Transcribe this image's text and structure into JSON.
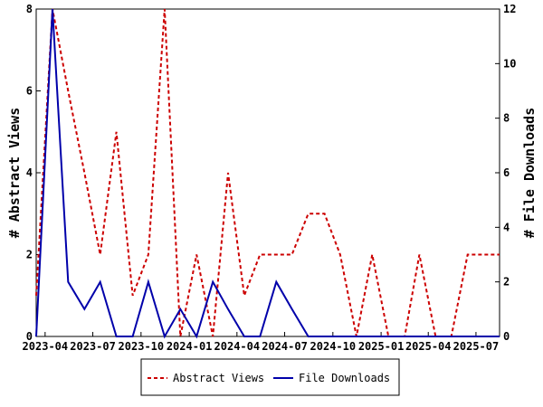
{
  "chart_data": {
    "type": "line",
    "x": [
      "2023-03-15",
      "2023-04-15",
      "2023-05-15",
      "2023-06-15",
      "2023-07-15",
      "2023-08-15",
      "2023-09-15",
      "2023-10-15",
      "2023-11-15",
      "2023-12-15",
      "2024-01-15",
      "2024-02-15",
      "2024-03-15",
      "2024-04-15",
      "2024-05-15",
      "2024-06-15",
      "2024-07-15",
      "2024-08-15",
      "2024-09-15",
      "2024-10-15",
      "2024-11-15",
      "2024-12-15",
      "2025-01-15",
      "2025-02-15",
      "2025-03-15",
      "2025-04-15",
      "2025-05-15",
      "2025-06-15",
      "2025-07-15",
      "2025-08-15"
    ],
    "series": [
      {
        "name": "Abstract Views",
        "axis": "left",
        "color": "#cc0000",
        "style": "dashed",
        "values": [
          1,
          8,
          6,
          4,
          2,
          5,
          1,
          2,
          8,
          0,
          2,
          0,
          4,
          1,
          2,
          2,
          2,
          3,
          3,
          2,
          0,
          2,
          0,
          0,
          2,
          0,
          0,
          2,
          2,
          2
        ]
      },
      {
        "name": "File Downloads",
        "axis": "right",
        "color": "#0000aa",
        "style": "solid",
        "values": [
          0,
          12,
          2,
          1,
          2,
          0,
          0,
          2,
          0,
          1,
          0,
          2,
          1,
          0,
          0,
          2,
          1,
          0,
          0,
          0,
          0,
          0,
          0,
          0,
          0,
          0,
          0,
          0,
          0,
          0
        ]
      }
    ],
    "x_tick_labels": [
      "2023-04",
      "2023-07",
      "2023-10",
      "2024-01",
      "2024-04",
      "2024-07",
      "2024-10",
      "2025-01",
      "2025-04",
      "2025-07"
    ],
    "x_tick_values": [
      "2023-04-01",
      "2023-07-01",
      "2023-10-01",
      "2024-01-01",
      "2024-04-01",
      "2024-07-01",
      "2024-10-01",
      "2025-01-01",
      "2025-04-01",
      "2025-07-01"
    ],
    "xlim": [
      "2023-03-15",
      "2025-08-15"
    ],
    "ylabel": "# Abstract Views",
    "ylim": [
      0,
      8
    ],
    "y_ticks": [
      0,
      2,
      4,
      6,
      8
    ],
    "y2label": "# File Downloads",
    "y2lim": [
      0,
      12
    ],
    "y2_ticks": [
      0,
      2,
      4,
      6,
      8,
      10,
      12
    ],
    "grid": false,
    "legend_position": "bottom-center"
  }
}
